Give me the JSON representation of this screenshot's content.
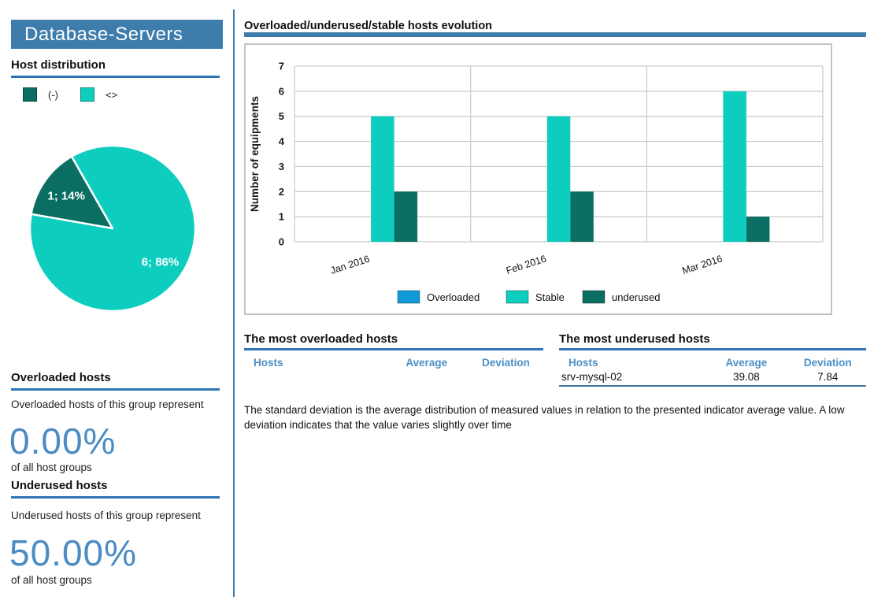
{
  "colors": {
    "accent_blue": "#3e7cac",
    "underline_blue": "#2e74b5",
    "big_number_blue": "#4a8cc4",
    "table_header_blue": "#4a90c8",
    "overloaded_blue": "#0e9bd8",
    "stable_teal": "#0dcebe",
    "underused_teal": "#0b6e63"
  },
  "sidebar": {
    "title": "Database-Servers",
    "host_distribution_heading": "Host distribution",
    "overloaded": {
      "heading": "Overloaded hosts",
      "description": "Overloaded hosts of this group represent",
      "percent": "0.00%",
      "caption": "of all host groups"
    },
    "underused": {
      "heading": "Underused hosts",
      "description": "Underused hosts of this group represent",
      "percent": "50.00%",
      "caption": "of all host groups"
    }
  },
  "main": {
    "chart_title": "Overloaded/underused/stable hosts evolution",
    "overloaded_table": {
      "heading": "The most overloaded hosts",
      "columns": [
        "Hosts",
        "Average",
        "Deviation"
      ],
      "rows": []
    },
    "underused_table": {
      "heading": "The most underused hosts",
      "columns": [
        "Hosts",
        "Average",
        "Deviation"
      ],
      "rows": [
        [
          "srv-mysql-02",
          "39.08",
          "7.84"
        ]
      ]
    },
    "note": "The standard deviation is the average distribution of measured values in relation to the presented indicator average value. A low  deviation indicates that the value varies slightly over time"
  },
  "chart_data": [
    {
      "type": "pie",
      "title": "Host distribution",
      "slices": [
        {
          "legend": "(-)",
          "label": "1; 14%",
          "value": 1,
          "pct": 14,
          "color": "#0b6e63"
        },
        {
          "legend": "<>",
          "label": "6; 86%",
          "value": 6,
          "pct": 86,
          "color": "#0dcebe"
        }
      ]
    },
    {
      "type": "bar",
      "title": "Overloaded/underused/stable hosts evolution",
      "categories": [
        "Jan 2016",
        "Feb 2016",
        "Mar 2016"
      ],
      "series": [
        {
          "name": "Overloaded",
          "color": "#0e9bd8",
          "values": [
            0,
            0,
            0
          ]
        },
        {
          "name": "Stable",
          "color": "#0dcebe",
          "values": [
            5,
            5,
            6
          ]
        },
        {
          "name": "underused",
          "color": "#0b6e63",
          "values": [
            2,
            2,
            1
          ]
        }
      ],
      "xlabel": "",
      "ylabel": "Number of equipments",
      "ylim": [
        0,
        7
      ],
      "yticks": [
        0,
        1,
        2,
        3,
        4,
        5,
        6,
        7
      ],
      "grid": true,
      "legend_position": "bottom"
    }
  ]
}
